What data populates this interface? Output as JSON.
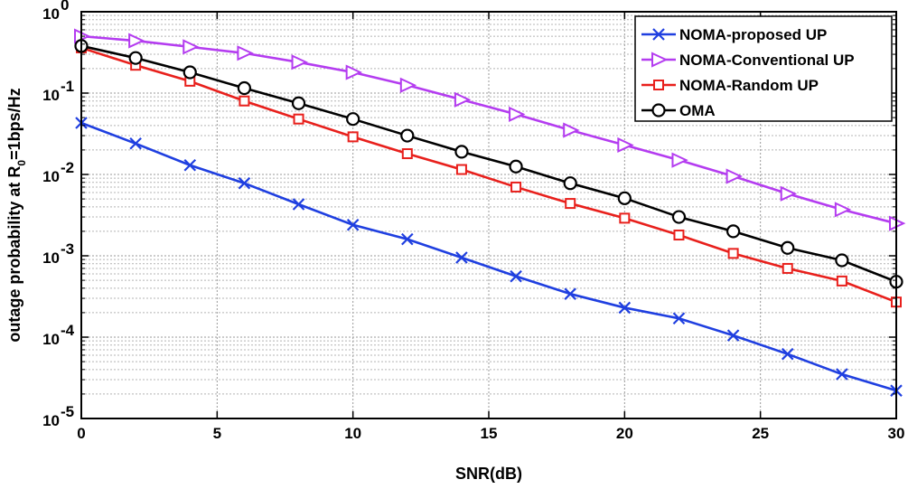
{
  "chart_data": {
    "type": "line",
    "title": "",
    "xlabel": "SNR(dB)",
    "ylabel": {
      "prefix": "outage probability at R",
      "subscript": "0",
      "suffix": "=1bps/Hz"
    },
    "xlim": [
      0,
      30
    ],
    "ylim": [
      1e-05,
      1
    ],
    "yscale": "log",
    "grid": true,
    "legend_position": "top-right",
    "x_ticks": [
      0,
      5,
      10,
      15,
      20,
      25,
      30
    ],
    "x_tick_labels": [
      "0",
      "5",
      "10",
      "15",
      "20",
      "25",
      "30"
    ],
    "y_ticks": [
      {
        "value": 1,
        "base": "10",
        "exp": "0"
      },
      {
        "value": 0.1,
        "base": "10",
        "exp": "-1"
      },
      {
        "value": 0.01,
        "base": "10",
        "exp": "-2"
      },
      {
        "value": 0.001,
        "base": "10",
        "exp": "-3"
      },
      {
        "value": 0.0001,
        "base": "10",
        "exp": "-4"
      },
      {
        "value": 1e-05,
        "base": "10",
        "exp": "-5"
      }
    ],
    "x": [
      0,
      2,
      4,
      6,
      8,
      10,
      12,
      14,
      16,
      18,
      20,
      22,
      24,
      26,
      28,
      30
    ],
    "series": [
      {
        "name": "NOMA-proposed UP",
        "color": "#1f3fe0",
        "marker": "x",
        "values": [
          0.043,
          0.024,
          0.013,
          0.0078,
          0.0043,
          0.0024,
          0.0016,
          0.00095,
          0.00056,
          0.00034,
          0.00023,
          0.00017,
          0.000105,
          6.2e-05,
          3.5e-05,
          2.2e-05
        ]
      },
      {
        "name": "NOMA-Conventional UP",
        "color": "#b43cf0",
        "marker": "triangle-right",
        "values": [
          0.5,
          0.44,
          0.37,
          0.31,
          0.24,
          0.18,
          0.125,
          0.083,
          0.055,
          0.035,
          0.023,
          0.015,
          0.0095,
          0.0058,
          0.0037,
          0.0025
        ]
      },
      {
        "name": "NOMA-Random UP",
        "color": "#e8201c",
        "marker": "square",
        "values": [
          0.36,
          0.22,
          0.14,
          0.08,
          0.048,
          0.029,
          0.018,
          0.0115,
          0.007,
          0.0044,
          0.0029,
          0.0018,
          0.00107,
          0.0007,
          0.00049,
          0.00027
        ]
      },
      {
        "name": "OMA",
        "color": "#000000",
        "marker": "circle",
        "values": [
          0.38,
          0.27,
          0.18,
          0.115,
          0.075,
          0.048,
          0.03,
          0.019,
          0.0125,
          0.0078,
          0.0051,
          0.003,
          0.002,
          0.00125,
          0.00088,
          0.00048
        ]
      }
    ]
  }
}
